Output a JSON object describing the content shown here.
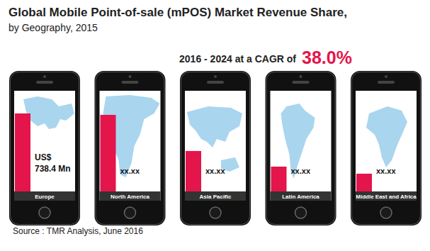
{
  "chart_data": {
    "type": "bar",
    "title": "Global Mobile Point-of-sale (mPOS) Market Revenue Share,",
    "subtitle": "by Geography, 2015",
    "annotations": [
      "2016 - 2024 at a CAGR of",
      "38.0%",
      "Source : TMR Analysis, June 2016"
    ],
    "categories": [
      "Europe",
      "North America",
      "Asia Pacific",
      "Latin America",
      "Middle East and Africa"
    ],
    "values": [
      738.4,
      725,
      383,
      235,
      168
    ],
    "value_labels": [
      "US$ 738.4 Mn",
      "xx.xx",
      "xx.xx",
      "xx.xx",
      "xx.xx"
    ],
    "data_labels": true,
    "tick_labels": "x",
    "color": "#e3154b"
  }
}
